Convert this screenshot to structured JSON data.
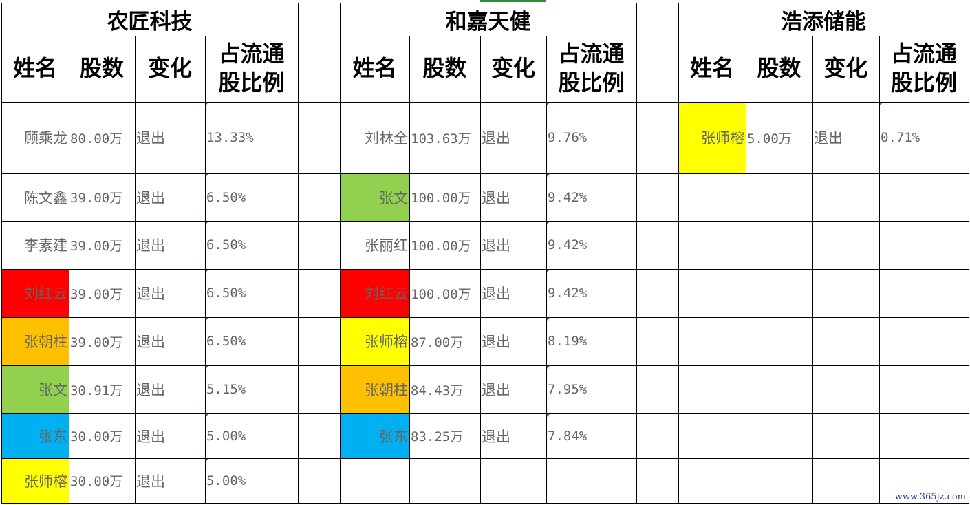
{
  "sheet": {
    "sections": [
      {
        "title": "农匠科技",
        "headers": [
          "姓名",
          "股数",
          "变化",
          "占流通股比例"
        ],
        "rows": [
          {
            "name": "顾乘龙",
            "shares": "80.00万",
            "change": "退出",
            "ratio": "13.33%",
            "fill": ""
          },
          {
            "name": "陈文鑫",
            "shares": "39.00万",
            "change": "退出",
            "ratio": "6.50%",
            "fill": ""
          },
          {
            "name": "李素建",
            "shares": "39.00万",
            "change": "退出",
            "ratio": "6.50%",
            "fill": ""
          },
          {
            "name": "刘红云",
            "shares": "39.00万",
            "change": "退出",
            "ratio": "6.50%",
            "fill": "#ff0000"
          },
          {
            "name": "张朝柱",
            "shares": "39.00万",
            "change": "退出",
            "ratio": "6.50%",
            "fill": "#ffc000"
          },
          {
            "name": "张文",
            "shares": "30.91万",
            "change": "退出",
            "ratio": "5.15%",
            "fill": "#92d050"
          },
          {
            "name": "张东",
            "shares": "30.00万",
            "change": "退出",
            "ratio": "5.00%",
            "fill": "#00b0f0"
          },
          {
            "name": "张师榕",
            "shares": "30.00万",
            "change": "退出",
            "ratio": "5.00%",
            "fill": "#ffff00"
          }
        ]
      },
      {
        "title": "和嘉天健",
        "headers": [
          "姓名",
          "股数",
          "变化",
          "占流通股比例"
        ],
        "rows": [
          {
            "name": "刘林全",
            "shares": "103.63万",
            "change": "退出",
            "ratio": "9.76%",
            "fill": ""
          },
          {
            "name": "张文",
            "shares": "100.00万",
            "change": "退出",
            "ratio": "9.42%",
            "fill": "#92d050"
          },
          {
            "name": "张丽红",
            "shares": "100.00万",
            "change": "退出",
            "ratio": "9.42%",
            "fill": ""
          },
          {
            "name": "刘红云",
            "shares": "100.00万",
            "change": "退出",
            "ratio": "9.42%",
            "fill": "#ff0000"
          },
          {
            "name": "张师榕",
            "shares": "87.00万",
            "change": "退出",
            "ratio": "8.19%",
            "fill": "#ffff00"
          },
          {
            "name": "张朝柱",
            "shares": "84.43万",
            "change": "退出",
            "ratio": "7.95%",
            "fill": "#ffc000"
          },
          {
            "name": "张东",
            "shares": "83.25万",
            "change": "退出",
            "ratio": "7.84%",
            "fill": "#00b0f0"
          }
        ]
      },
      {
        "title": "浩添储能",
        "headers": [
          "姓名",
          "股数",
          "变化",
          "占流通股比例"
        ],
        "rows": [
          {
            "name": "张师榕",
            "shares": "5.00万",
            "change": "退出",
            "ratio": "0.71%",
            "fill": "#ffff00"
          }
        ]
      }
    ]
  },
  "watermark": "www.365jz.com"
}
